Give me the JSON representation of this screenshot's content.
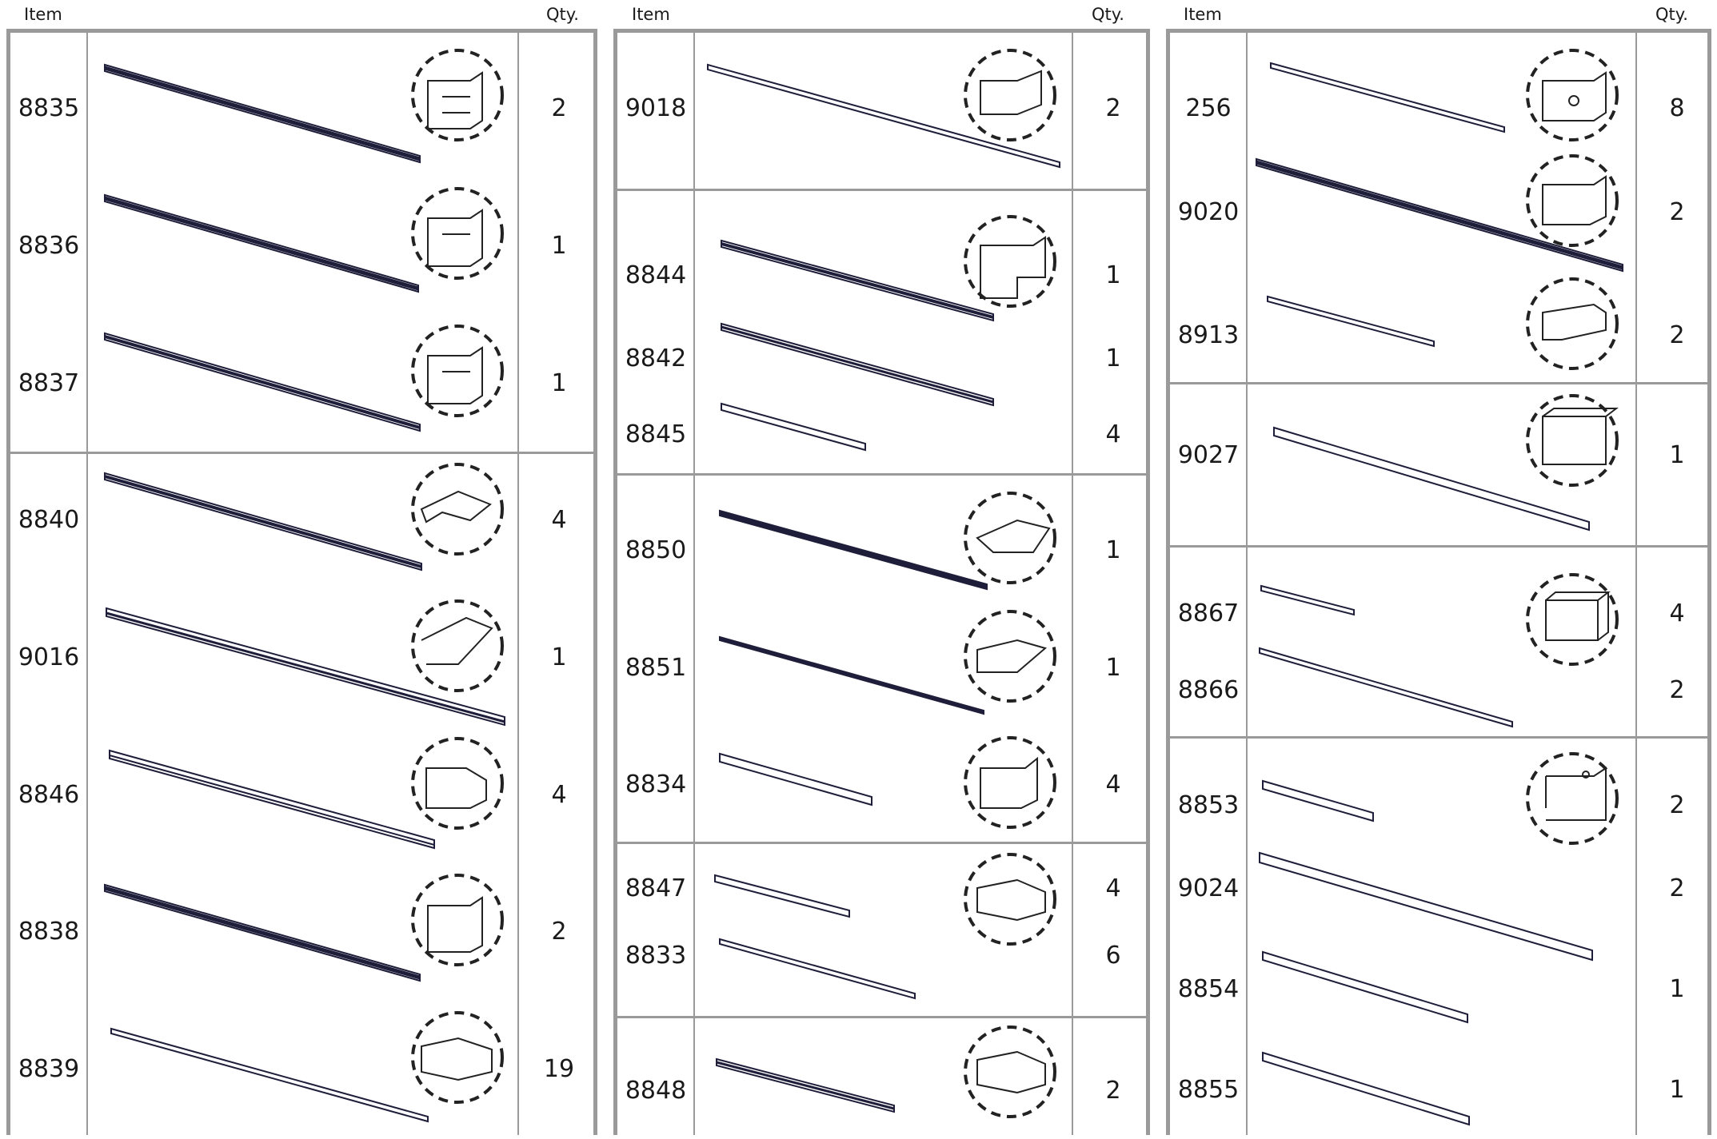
{
  "headers": {
    "item": "Item",
    "qty": "Qty."
  },
  "columns": [
    {
      "rows": [
        {
          "item": "8835",
          "qty": "2",
          "icon": "rail-profile-icon"
        },
        {
          "item": "8836",
          "qty": "1",
          "icon": "rail-profile-icon"
        },
        {
          "item": "8837",
          "qty": "1",
          "icon": "rail-profile-icon"
        },
        {
          "item": "8840",
          "qty": "4",
          "icon": "angled-profile-icon"
        },
        {
          "item": "9016",
          "qty": "1",
          "icon": "angled-profile-icon"
        },
        {
          "item": "8846",
          "qty": "4",
          "icon": "channel-profile-icon"
        },
        {
          "item": "8838",
          "qty": "2",
          "icon": "rail-profile-icon"
        },
        {
          "item": "8839",
          "qty": "19",
          "icon": "hook-profile-icon"
        }
      ]
    },
    {
      "rows": [
        {
          "item": "9018",
          "qty": "2",
          "icon": "bracket-profile-icon"
        },
        {
          "item": "8844",
          "qty": "1",
          "icon": "rail-profile-icon"
        },
        {
          "item": "8842",
          "qty": "1",
          "icon": null
        },
        {
          "item": "8845",
          "qty": "4",
          "icon": null
        },
        {
          "item": "8850",
          "qty": "1",
          "icon": "angled-profile-icon"
        },
        {
          "item": "8851",
          "qty": "1",
          "icon": "flat-profile-icon"
        },
        {
          "item": "8834",
          "qty": "4",
          "icon": "channel-profile-icon"
        },
        {
          "item": "8847",
          "qty": "4",
          "icon": "h-profile-icon"
        },
        {
          "item": "8833",
          "qty": "6",
          "icon": null
        },
        {
          "item": "8848",
          "qty": "2",
          "icon": "h-profile-icon"
        }
      ]
    },
    {
      "rows": [
        {
          "item": "256",
          "qty": "8",
          "icon": "plate-hole-icon"
        },
        {
          "item": "9020",
          "qty": "2",
          "icon": "slotted-profile-icon"
        },
        {
          "item": "8913",
          "qty": "2",
          "icon": "angle-profile-icon"
        },
        {
          "item": "9027",
          "qty": "1",
          "icon": "box-profile-icon"
        },
        {
          "item": "8867",
          "qty": "4",
          "icon": "square-tube-icon"
        },
        {
          "item": "8866",
          "qty": "2",
          "icon": null
        },
        {
          "item": "8853",
          "qty": "2",
          "icon": "c-channel-icon"
        },
        {
          "item": "9024",
          "qty": "2",
          "icon": null
        },
        {
          "item": "8854",
          "qty": "1",
          "icon": null
        },
        {
          "item": "8855",
          "qty": "1",
          "icon": null
        }
      ]
    }
  ]
}
